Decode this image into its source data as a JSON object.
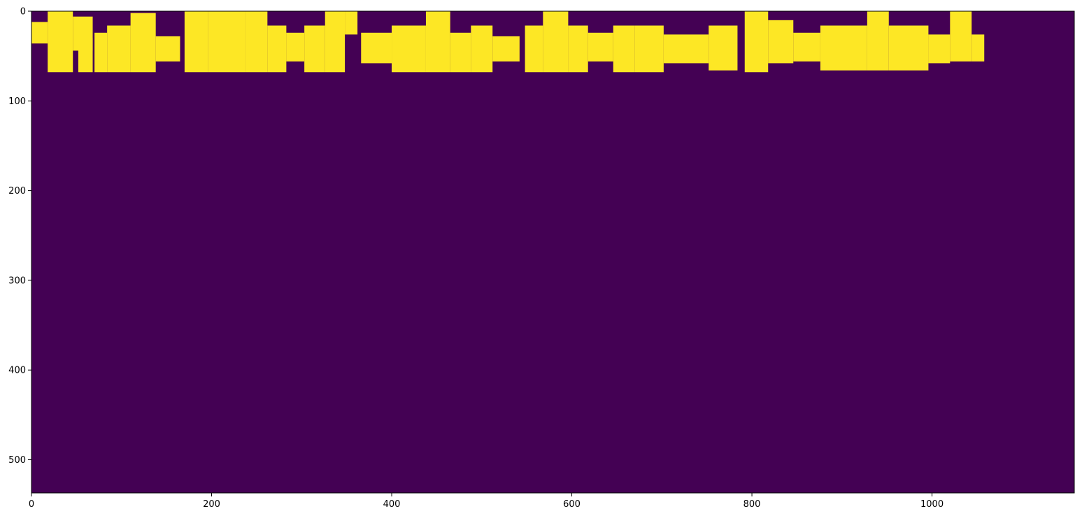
{
  "chart_data": {
    "type": "heatmap",
    "title": "",
    "xlabel": "",
    "ylabel": "",
    "xlim": [
      0,
      1158
    ],
    "ylim": [
      537,
      0
    ],
    "x_ticks": [
      0,
      200,
      400,
      600,
      800,
      1000
    ],
    "y_ticks": [
      0,
      100,
      200,
      300,
      400,
      500
    ],
    "x_tick_labels": [
      "0",
      "200",
      "400",
      "600",
      "800",
      "1000"
    ],
    "y_tick_labels": [
      "0",
      "100",
      "200",
      "300",
      "400",
      "500"
    ],
    "colormap": "viridis",
    "background_value": 0,
    "foreground_value": 1,
    "colors": {
      "background": "#440154",
      "foreground": "#fde725"
    },
    "grid": false,
    "legend": "none",
    "regions": [
      {
        "x0": 0,
        "x1": 18,
        "y0": 12,
        "y1": 36
      },
      {
        "x0": 18,
        "x1": 46,
        "y0": 0,
        "y1": 68
      },
      {
        "x0": 46,
        "x1": 68,
        "y0": 6,
        "y1": 44
      },
      {
        "x0": 52,
        "x1": 68,
        "y0": 30,
        "y1": 68
      },
      {
        "x0": 70,
        "x1": 84,
        "y0": 24,
        "y1": 68
      },
      {
        "x0": 84,
        "x1": 110,
        "y0": 16,
        "y1": 68
      },
      {
        "x0": 110,
        "x1": 138,
        "y0": 2,
        "y1": 68
      },
      {
        "x0": 138,
        "x1": 165,
        "y0": 28,
        "y1": 56
      },
      {
        "x0": 170,
        "x1": 196,
        "y0": 0,
        "y1": 68
      },
      {
        "x0": 196,
        "x1": 238,
        "y0": 0,
        "y1": 68
      },
      {
        "x0": 238,
        "x1": 262,
        "y0": 0,
        "y1": 68
      },
      {
        "x0": 262,
        "x1": 283,
        "y0": 16,
        "y1": 68
      },
      {
        "x0": 283,
        "x1": 303,
        "y0": 24,
        "y1": 56
      },
      {
        "x0": 303,
        "x1": 326,
        "y0": 16,
        "y1": 68
      },
      {
        "x0": 326,
        "x1": 348,
        "y0": 0,
        "y1": 68
      },
      {
        "x0": 348,
        "x1": 362,
        "y0": 0,
        "y1": 26
      },
      {
        "x0": 366,
        "x1": 400,
        "y0": 24,
        "y1": 58
      },
      {
        "x0": 400,
        "x1": 438,
        "y0": 16,
        "y1": 68
      },
      {
        "x0": 438,
        "x1": 465,
        "y0": 0,
        "y1": 68
      },
      {
        "x0": 465,
        "x1": 488,
        "y0": 24,
        "y1": 68
      },
      {
        "x0": 488,
        "x1": 512,
        "y0": 16,
        "y1": 68
      },
      {
        "x0": 512,
        "x1": 542,
        "y0": 28,
        "y1": 56
      },
      {
        "x0": 548,
        "x1": 568,
        "y0": 16,
        "y1": 68
      },
      {
        "x0": 568,
        "x1": 596,
        "y0": 0,
        "y1": 68
      },
      {
        "x0": 596,
        "x1": 618,
        "y0": 16,
        "y1": 68
      },
      {
        "x0": 618,
        "x1": 646,
        "y0": 24,
        "y1": 56
      },
      {
        "x0": 646,
        "x1": 670,
        "y0": 16,
        "y1": 68
      },
      {
        "x0": 670,
        "x1": 702,
        "y0": 16,
        "y1": 68
      },
      {
        "x0": 702,
        "x1": 752,
        "y0": 26,
        "y1": 58
      },
      {
        "x0": 752,
        "x1": 784,
        "y0": 16,
        "y1": 66
      },
      {
        "x0": 792,
        "x1": 818,
        "y0": 0,
        "y1": 68
      },
      {
        "x0": 818,
        "x1": 846,
        "y0": 10,
        "y1": 58
      },
      {
        "x0": 846,
        "x1": 876,
        "y0": 24,
        "y1": 56
      },
      {
        "x0": 876,
        "x1": 928,
        "y0": 16,
        "y1": 66
      },
      {
        "x0": 928,
        "x1": 952,
        "y0": 0,
        "y1": 66
      },
      {
        "x0": 952,
        "x1": 996,
        "y0": 16,
        "y1": 66
      },
      {
        "x0": 996,
        "x1": 1020,
        "y0": 26,
        "y1": 58
      },
      {
        "x0": 1020,
        "x1": 1044,
        "y0": 0,
        "y1": 56
      },
      {
        "x0": 1044,
        "x1": 1058,
        "y0": 26,
        "y1": 56
      }
    ]
  }
}
